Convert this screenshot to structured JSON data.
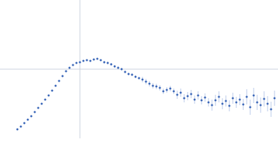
{
  "chart_data": {
    "type": "scatter",
    "color": "#3a66b8",
    "error_color": "#a9bde3",
    "xlim": [
      0,
      400
    ],
    "ylim": [
      0,
      200
    ],
    "x": [
      25,
      30,
      35,
      40,
      45,
      50,
      55,
      60,
      65,
      70,
      75,
      80,
      85,
      90,
      95,
      100,
      105,
      110,
      115,
      120,
      125,
      130,
      135,
      140,
      145,
      150,
      155,
      160,
      165,
      170,
      175,
      180,
      185,
      190,
      195,
      200,
      205,
      210,
      215,
      220,
      225,
      230,
      235,
      240,
      245,
      250,
      255,
      260,
      265,
      270,
      275,
      280,
      285,
      290,
      295,
      300,
      305,
      310,
      315,
      320,
      325,
      330,
      335,
      340,
      345,
      350,
      355,
      360,
      365,
      370,
      375,
      380,
      385,
      390,
      395
    ],
    "series": [
      {
        "values": [
          13,
          17,
          22,
          27,
          32,
          38,
          44,
          50,
          56,
          62,
          69,
          76,
          83,
          90,
          97,
          102,
          106,
          109,
          110,
          112,
          113,
          112,
          114,
          115,
          113,
          110,
          109,
          107,
          104,
          102,
          100,
          96,
          93,
          92,
          89,
          87,
          85,
          82,
          79,
          76,
          75,
          73,
          68,
          70,
          72,
          68,
          63,
          66,
          58,
          61,
          64,
          56,
          62,
          55,
          59,
          52,
          48,
          55,
          60,
          50,
          54,
          47,
          58,
          52,
          56,
          49,
          60,
          45,
          62,
          52,
          48,
          57,
          50,
          42,
          58
        ],
        "errors": [
          0,
          0,
          0,
          0,
          0,
          0,
          0,
          0,
          0,
          0,
          0,
          0,
          0,
          0,
          0,
          1,
          1,
          1,
          1,
          1,
          1,
          1,
          1,
          1,
          1,
          2,
          2,
          2,
          2,
          2,
          2,
          2,
          2,
          2,
          2,
          2,
          4,
          4,
          4,
          4,
          4,
          4,
          4,
          4,
          4,
          4,
          6,
          6,
          6,
          6,
          6,
          6,
          6,
          6,
          6,
          6,
          8,
          8,
          8,
          8,
          8,
          8,
          8,
          8,
          8,
          8,
          11,
          11,
          11,
          11,
          11,
          11,
          11,
          11,
          11
        ]
      }
    ]
  }
}
